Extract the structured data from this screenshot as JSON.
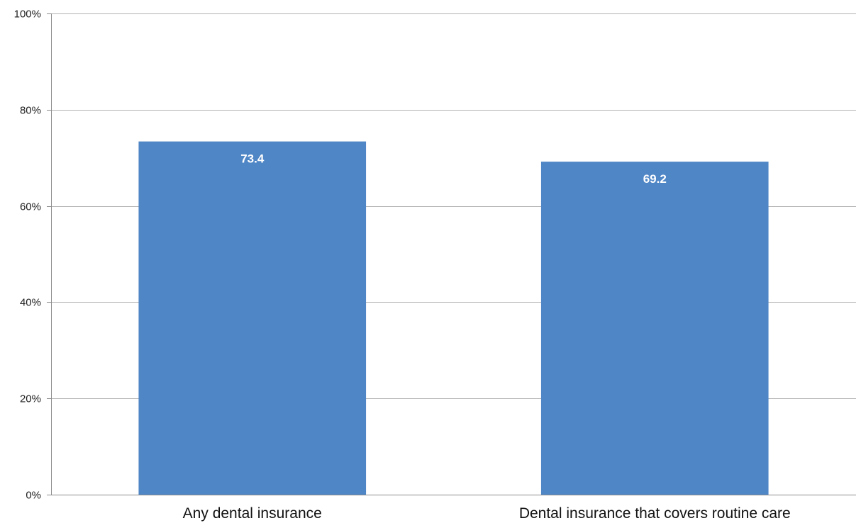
{
  "chart_data": {
    "type": "bar",
    "categories": [
      "Any dental insurance",
      "Dental insurance that covers routine care"
    ],
    "values": [
      73.4,
      69.2
    ],
    "data_labels": [
      "73.4",
      "69.2"
    ],
    "title": "",
    "xlabel": "",
    "ylabel": "",
    "ylim": [
      0,
      100
    ],
    "yticks": [
      0,
      20,
      40,
      60,
      80,
      100
    ],
    "ytick_labels": [
      "0%",
      "20%",
      "40%",
      "60%",
      "80%",
      "100%"
    ],
    "grid": true,
    "legend": "none",
    "bar_color": "#4f86c6",
    "grid_color": "#b3b3b3",
    "axis_color": "#8c8c8c"
  }
}
